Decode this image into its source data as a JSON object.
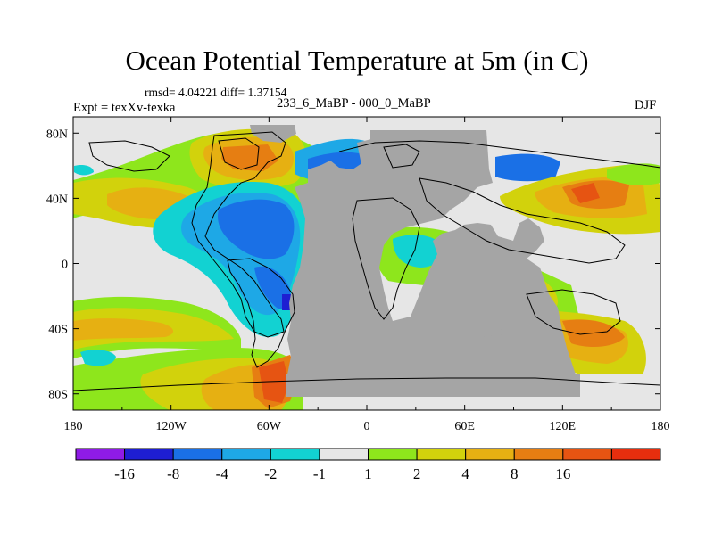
{
  "title": "Ocean Potential Temperature at 5m (in C)",
  "stats": "rmsd= 4.04221 diff= 1.37154",
  "subtitle": "233_6_MaBP - 000_0_MaBP",
  "experiment": "Expt = texXv-texka",
  "season": "DJF",
  "axes": {
    "y_ticks": [
      {
        "value": 80,
        "label": "80N"
      },
      {
        "value": 40,
        "label": "40N"
      },
      {
        "value": 0,
        "label": "0"
      },
      {
        "value": -40,
        "label": "40S"
      },
      {
        "value": -80,
        "label": "80S"
      }
    ],
    "x_ticks": [
      {
        "value": -180,
        "label": "180"
      },
      {
        "value": -120,
        "label": "120W"
      },
      {
        "value": -60,
        "label": "60W"
      },
      {
        "value": 0,
        "label": "0"
      },
      {
        "value": 60,
        "label": "60E"
      },
      {
        "value": 120,
        "label": "120E"
      },
      {
        "value": 180,
        "label": "180"
      }
    ]
  },
  "colorbar": {
    "colors": [
      "#8f1be6",
      "#1e1ed2",
      "#1a70e6",
      "#1ea8e6",
      "#12d2d2",
      "#e6e6e6",
      "#8ee61c",
      "#d2d20c",
      "#e6b012",
      "#e67e12",
      "#e65412",
      "#e62e0e"
    ],
    "labels": [
      "-16",
      "-8",
      "-4",
      "-2",
      "-1",
      "1",
      "2",
      "4",
      "8",
      "16"
    ]
  },
  "palette": {
    "land": "#a5a5a5",
    "neutral": "#e6e6e6",
    "cyan": "#12d2d2",
    "lightblue": "#1ea8e6",
    "blue": "#1a70e6",
    "darkblue": "#1e1ed2",
    "green": "#8ee61c",
    "yellow": "#d2d20c",
    "lightorange": "#e6b012",
    "orange": "#e67e12",
    "red": "#e65412"
  }
}
